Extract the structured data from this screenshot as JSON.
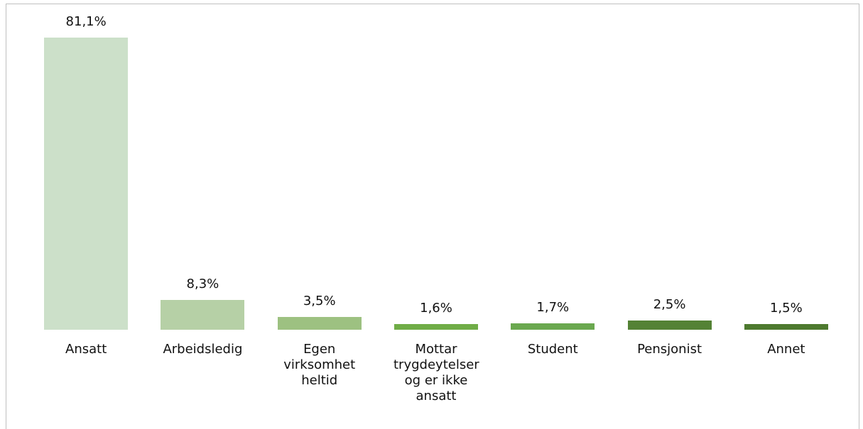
{
  "chart_data": {
    "type": "bar",
    "categories": [
      "Ansatt",
      "Arbeidsledig",
      "Egen virksomhet heltid",
      "Mottar trygdeytelser og er ikke ansatt",
      "Student",
      "Pensjonist",
      "Annet"
    ],
    "values": [
      81.1,
      8.3,
      3.5,
      1.6,
      1.7,
      2.5,
      1.5
    ],
    "value_labels": [
      "81,1%",
      "8,3%",
      "3,5%",
      "1,6%",
      "1,7%",
      "2,5%",
      "1,5%"
    ],
    "colors": [
      "#cce0c9",
      "#b6d0a6",
      "#9dc181",
      "#70ad47",
      "#6aa84f",
      "#548235",
      "#4e7a2f"
    ]
  }
}
